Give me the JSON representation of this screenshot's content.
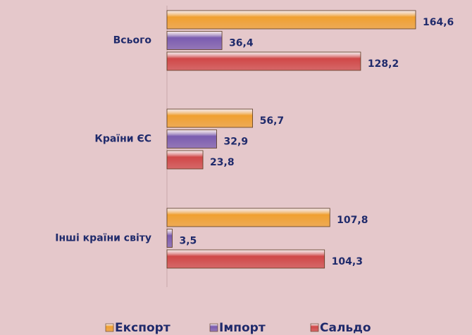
{
  "chart_data": {
    "type": "bar",
    "orientation": "horizontal",
    "categories": [
      "Всього",
      "Країни ЄС",
      "Інші країни світу"
    ],
    "series": [
      {
        "name": "Експорт",
        "color": "#f0a030",
        "values": [
          164.6,
          56.7,
          107.8
        ],
        "value_labels": [
          "164,6",
          "56,7",
          "107,8"
        ]
      },
      {
        "name": "Імпорт",
        "color": "#7a5cb0",
        "values": [
          36.4,
          32.9,
          3.5
        ],
        "value_labels": [
          "36,4",
          "32,9",
          "3,5"
        ]
      },
      {
        "name": "Сальдо",
        "color": "#d04848",
        "values": [
          128.2,
          23.8,
          104.3
        ],
        "value_labels": [
          "128,2",
          "23,8",
          "104,3"
        ]
      }
    ],
    "legend": "bottom"
  }
}
